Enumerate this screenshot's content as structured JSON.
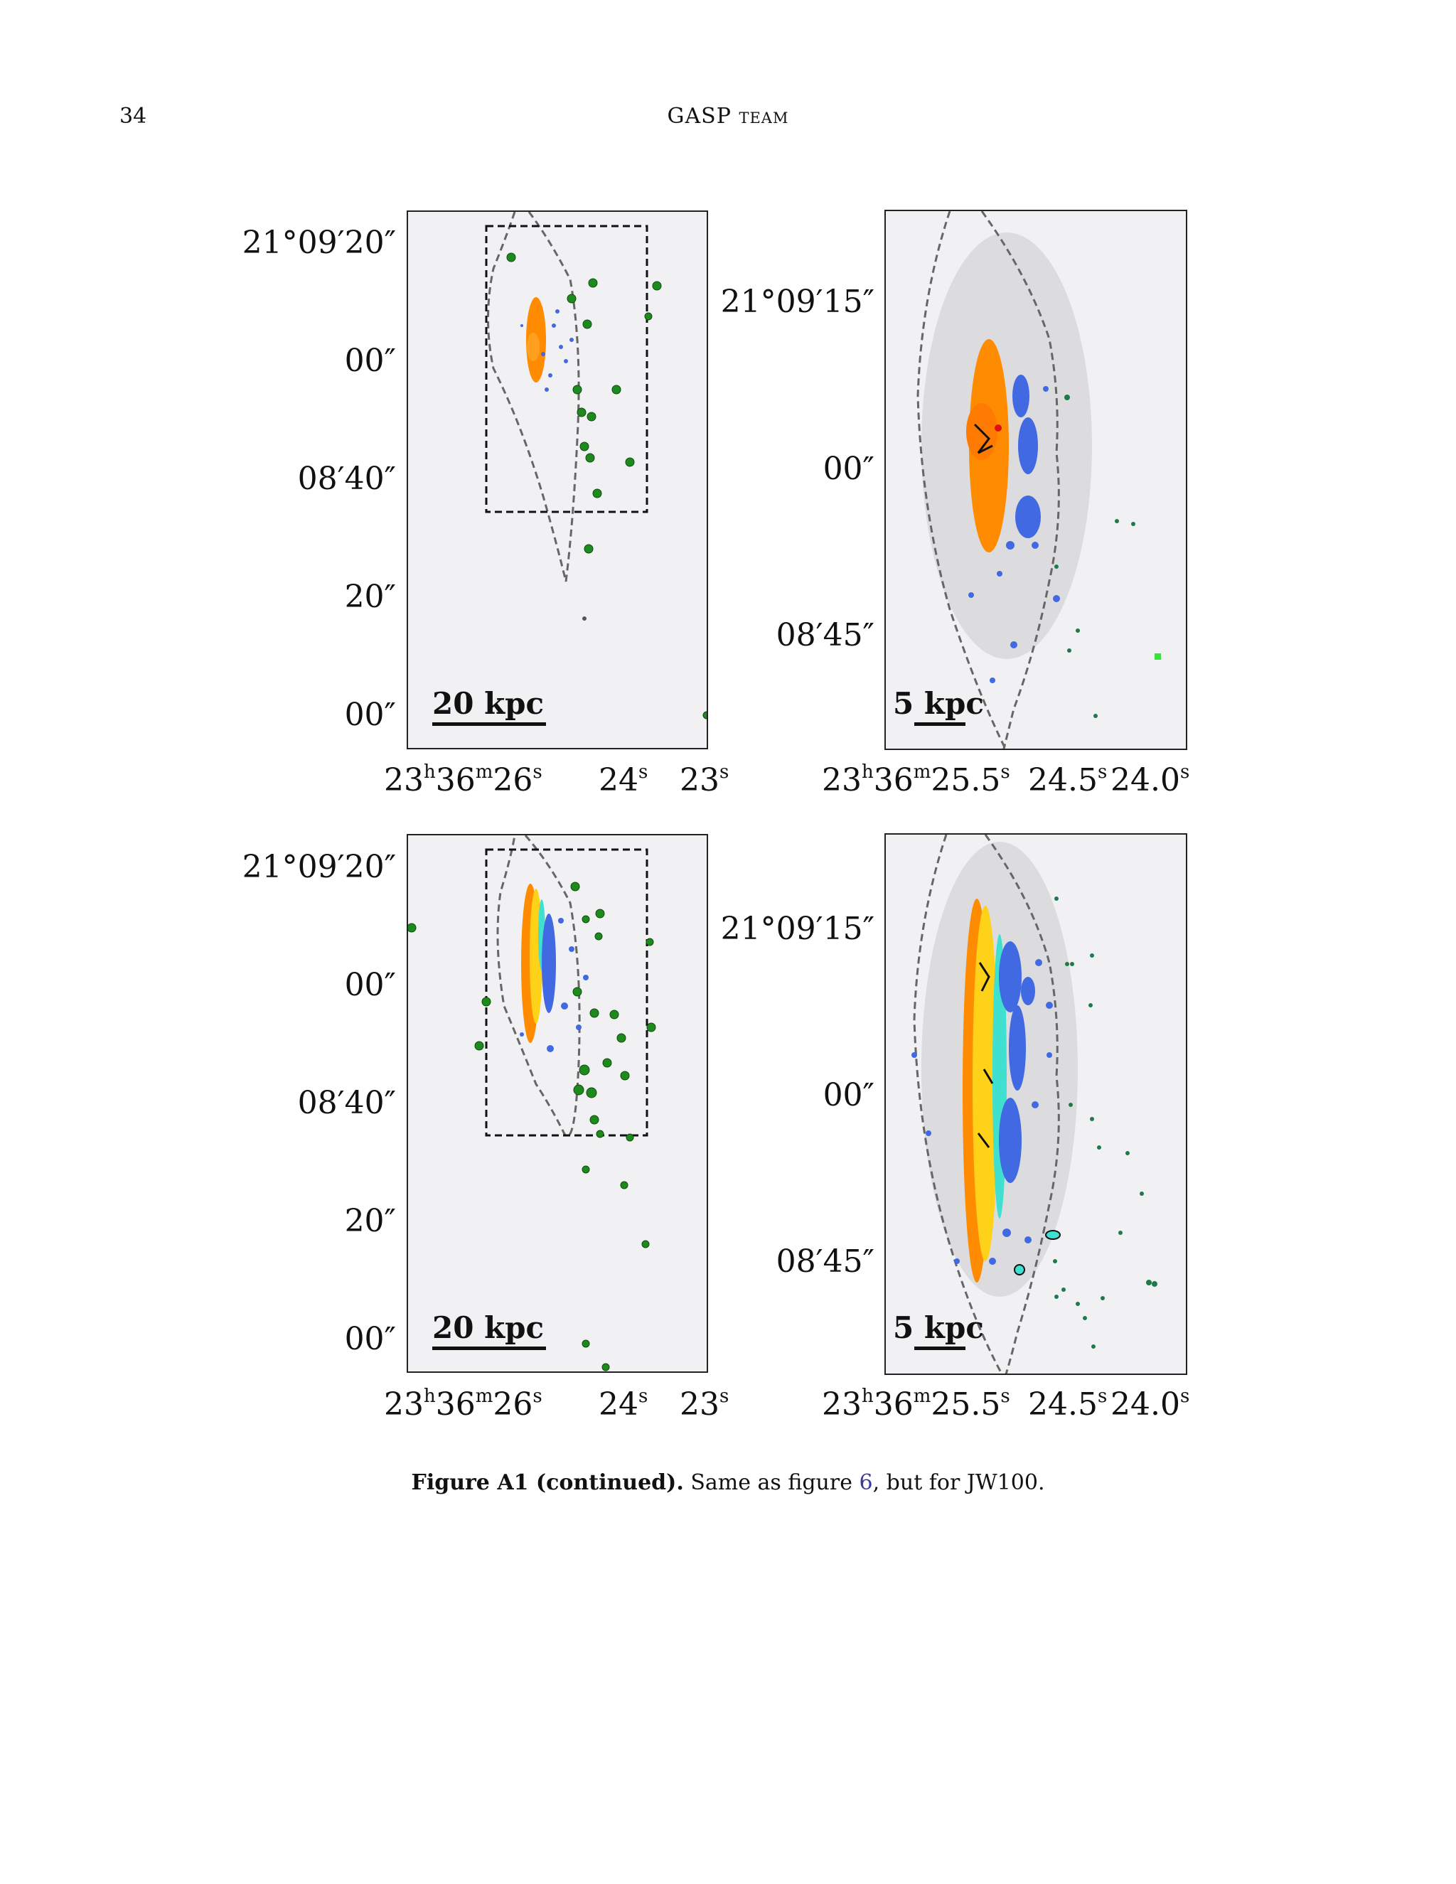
{
  "header": {
    "page_number": "34",
    "running_head_main": "GASP",
    "running_head_sc": "team"
  },
  "panels": {
    "top_left": {
      "y_ticks": [
        "21°09′20″",
        "00″",
        "08′40″",
        "20″",
        "00″"
      ],
      "x_ticks": [
        "23",
        "h",
        "36",
        "m",
        "26",
        "s",
        "24",
        "s",
        "23",
        "s"
      ],
      "scale_label": "20 kpc"
    },
    "top_right": {
      "y_ticks": [
        "21°09′15″",
        "00″",
        "08′45″"
      ],
      "x_ticks": [
        "23",
        "h",
        "36",
        "m",
        "25.5",
        "s",
        "24.5",
        "s",
        "24.0",
        "s"
      ],
      "scale_label": "5 kpc"
    },
    "bottom_left": {
      "y_ticks": [
        "21°09′20″",
        "00″",
        "08′40″",
        "20″",
        "00″"
      ],
      "x_ticks": [
        "23",
        "h",
        "36",
        "m",
        "26",
        "s",
        "24",
        "s",
        "23",
        "s"
      ],
      "scale_label": "20 kpc"
    },
    "bottom_right": {
      "y_ticks": [
        "21°09′15″",
        "00″",
        "08′45″"
      ],
      "x_ticks": [
        "23",
        "h",
        "36",
        "m",
        "25.5",
        "s",
        "24.5",
        "s",
        "24.0",
        "s"
      ],
      "scale_label": "5 kpc"
    }
  },
  "colors": {
    "orange": "#ff8c00",
    "blue": "#4169e1",
    "green": "#1e8a1e",
    "yellow": "#ffd21a",
    "cyan": "#40e0d0",
    "red": "#e01010"
  },
  "caption": {
    "label": "Figure A1 (continued).",
    "text_before": " Same as figure ",
    "ref": "6",
    "text_after": ", but for JW100."
  }
}
